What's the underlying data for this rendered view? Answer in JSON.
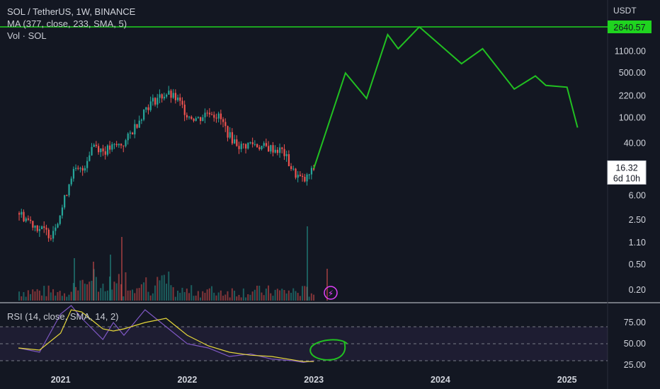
{
  "header": {
    "symbol_line": "SOL / TetherUS, 1W, BINANCE",
    "ma_line": "MA (377, close, 233, SMA, 5)",
    "vol_line": "Vol · SOL",
    "rsi_line": "RSI (14, close, SMA, 14, 2)"
  },
  "axis": {
    "currency": "USDT",
    "price_ticks": [
      "1100.00",
      "500.00",
      "220.00",
      "100.00",
      "40.00",
      "6.00",
      "2.50",
      "1.10",
      "0.50",
      "0.20"
    ],
    "price_tick_values": [
      1100,
      500,
      220,
      100,
      40,
      6,
      2.5,
      1.1,
      0.5,
      0.2
    ],
    "target_label": "2640.57",
    "target_value": 2640.57,
    "current_price": "16.32",
    "countdown": "6d 10h",
    "current_value": 16.32,
    "rsi_ticks": [
      "75.00",
      "50.00",
      "25.00"
    ],
    "rsi_tick_values": [
      75,
      50,
      25
    ],
    "year_ticks": [
      "2021",
      "2022",
      "2023",
      "2024",
      "2025"
    ]
  },
  "colors": {
    "background": "#131722",
    "up": "#26a69a",
    "down": "#ef5350",
    "projection": "#21c021",
    "target_line": "#1fd41f",
    "rsi": "#7e57c2",
    "rsi_ma": "#e6d73a",
    "grid": "#2a2e39"
  },
  "chart_data": {
    "type": "line",
    "title": "SOL / TetherUS, 1W, BINANCE",
    "price_scale": "log",
    "price_history": {
      "x": [
        "2020-09",
        "2020-10",
        "2020-11",
        "2020-12",
        "2021-01",
        "2021-02",
        "2021-03",
        "2021-04",
        "2021-05",
        "2021-06",
        "2021-07",
        "2021-08",
        "2021-09",
        "2021-10",
        "2021-11",
        "2021-12",
        "2022-01",
        "2022-02",
        "2022-03",
        "2022-04",
        "2022-05",
        "2022-06",
        "2022-07",
        "2022-08",
        "2022-09",
        "2022-10",
        "2022-11",
        "2022-12",
        "2023-01"
      ],
      "y": [
        3.2,
        2.4,
        1.8,
        1.5,
        3.5,
        14,
        15,
        40,
        30,
        35,
        40,
        75,
        145,
        200,
        240,
        190,
        110,
        95,
        130,
        100,
        50,
        35,
        40,
        35,
        33,
        30,
        14,
        10,
        16.32
      ]
    },
    "projection": {
      "x": [
        "2023-01",
        "2023-04",
        "2023-06",
        "2023-08",
        "2023-09",
        "2023-11",
        "2024-03",
        "2024-05",
        "2024-08",
        "2024-10",
        "2024-11",
        "2025-01",
        "2025-02"
      ],
      "y": [
        16,
        500,
        200,
        2000,
        1200,
        2640.57,
        700,
        1200,
        280,
        450,
        320,
        300,
        70
      ]
    },
    "target": 2640.57,
    "rsi": {
      "x": [
        "2020-09",
        "2020-11",
        "2021-01",
        "2021-02",
        "2021-03",
        "2021-05",
        "2021-06",
        "2021-07",
        "2021-09",
        "2021-11",
        "2022-01",
        "2022-03",
        "2022-05",
        "2022-07",
        "2022-09",
        "2022-11",
        "2022-12",
        "2023-01"
      ],
      "y": [
        45,
        40,
        85,
        95,
        80,
        55,
        75,
        60,
        90,
        70,
        50,
        45,
        35,
        38,
        32,
        30,
        28,
        30
      ]
    },
    "rsi_levels": [
      70,
      50,
      30
    ],
    "rsi_ylim": [
      10,
      100
    ],
    "ylim": [
      0.15,
      3000
    ]
  }
}
